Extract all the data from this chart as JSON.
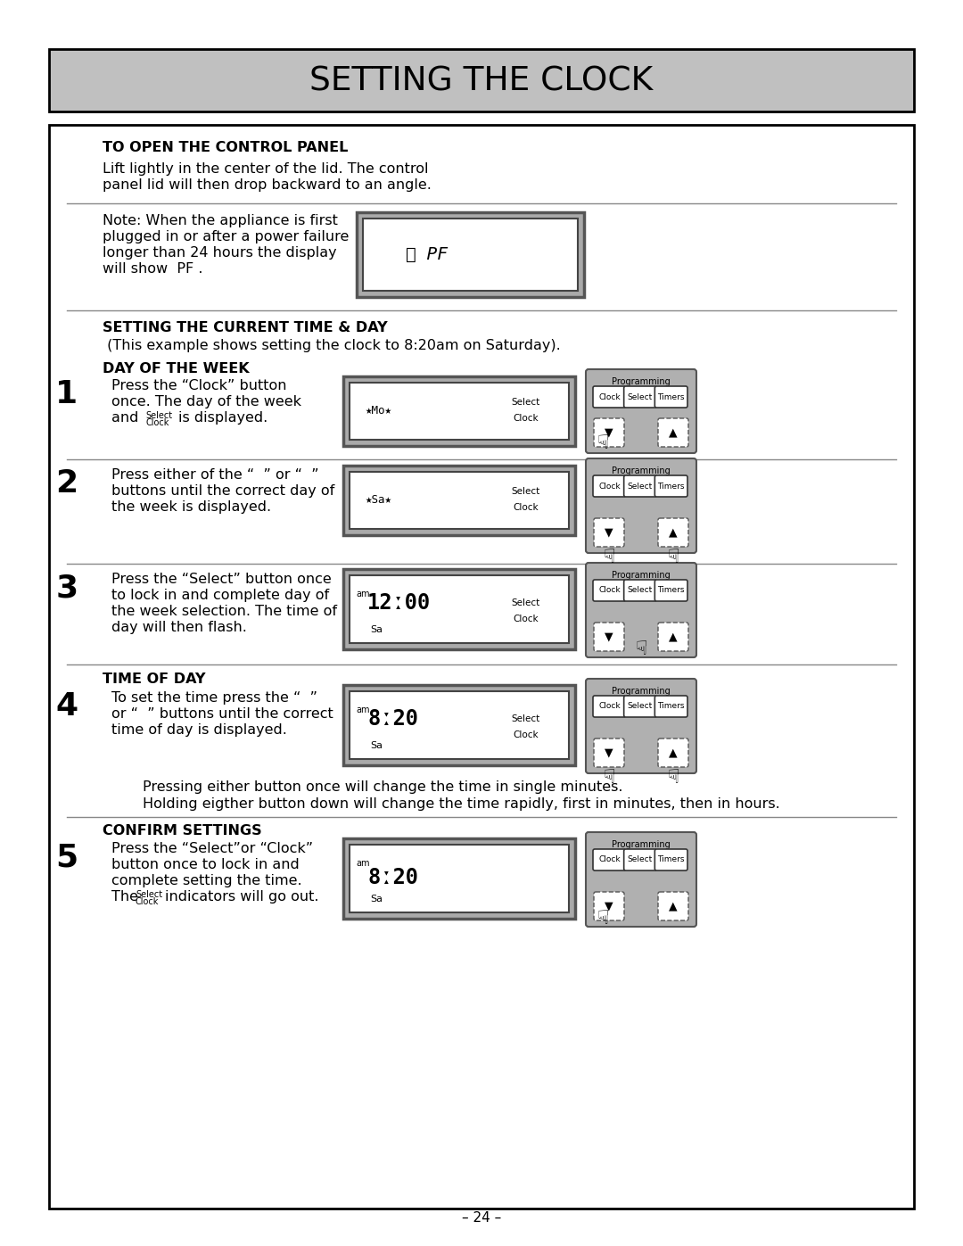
{
  "title": "SETTING THE CLOCK",
  "title_bg": "#c8c8c8",
  "page_bg": "#ffffff",
  "section1_header": "TO OPEN THE CONTROL PANEL",
  "section1_body1": "Lift lightly in the center of the lid. The control",
  "section1_body2": "panel lid will then drop backward to an angle.",
  "note_text1": "Note: When the appliance is first",
  "note_text2": "plugged in or after a power failure",
  "note_text3": "longer than 24 hours the display",
  "note_text4": "will show  PF .",
  "section2_header": "SETTING THE CURRENT TIME & DAY",
  "section2_sub": " (This example shows setting the clock to 8:20am on Saturday).",
  "dow_header": "DAY OF THE WEEK",
  "step1_num": "1",
  "step2_num": "2",
  "step3_num": "3",
  "step4_num": "4",
  "step5_num": "5",
  "step1_line1": "Press the “Clock” button",
  "step1_line2": "once. The day of the week",
  "step1_line3": "and",
  "step1_line3b": "is displayed.",
  "step1_sel1": "Select",
  "step1_sel2": "Clock",
  "step2_line1": "Press either of the “  ” or “  ”",
  "step2_line2": "buttons until the correct day of",
  "step2_line3": "the week is displayed.",
  "step3_line1": "Press the “Select” button once",
  "step3_line2": "to lock in and complete day of",
  "step3_line3": "the week selection. The time of",
  "step3_line4": "day will then flash.",
  "tod_header": "TIME OF DAY",
  "step4_line1": "To set the time press the “  ”",
  "step4_line2": "or “  ” buttons until the correct",
  "step4_line3": "time of day is displayed.",
  "step4_note1": "Pressing either button once will change the time in single minutes.",
  "step4_note2": "Holding eigther button down will change the time rapidly, first in minutes, then in hours.",
  "confirm_header": "CONFIRM SETTINGS",
  "step5_line1": "Press the “Select”or “Clock”",
  "step5_line2": "button once to lock in and",
  "step5_line3": "complete setting the time.",
  "step5_line4": "The",
  "step5_line4b": "indicators will go out.",
  "step5_sel1": "Select",
  "step5_sel2": "Clock",
  "page_num": "– 24 –",
  "gray_title": "#c0c0c0",
  "gray_panel": "#b8b8b8",
  "gray_display_outer": "#999999",
  "gray_light": "#d0d0d0",
  "font_main": 11.5
}
